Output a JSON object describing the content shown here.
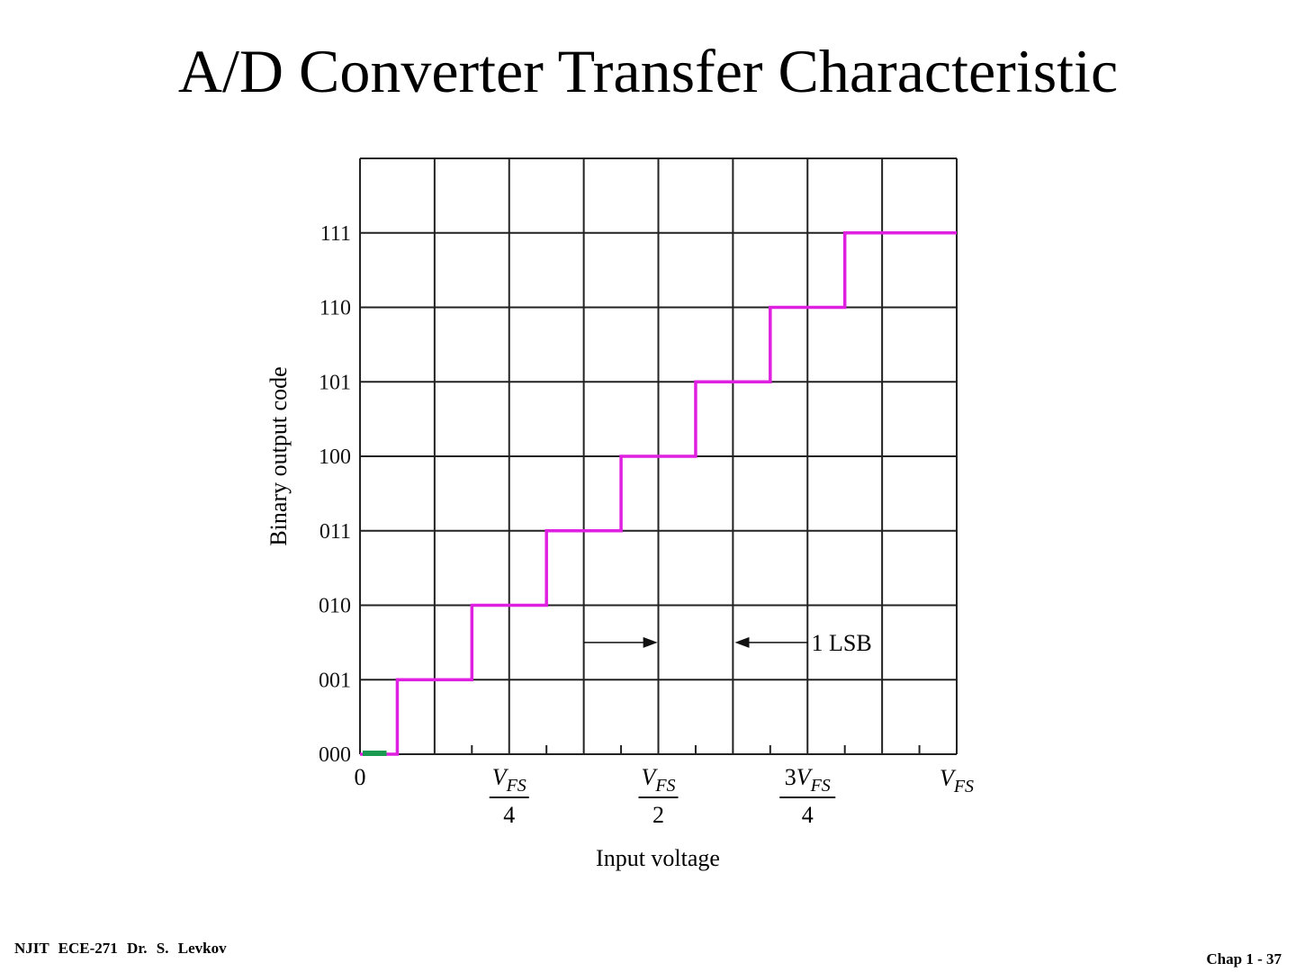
{
  "slide": {
    "title": "A/D Converter Transfer Characteristic",
    "footer_left": "NJIT   ECE-271   Dr. S. Levkov",
    "footer_right": "Chap 1 - 37"
  },
  "chart_data": {
    "type": "line",
    "title": "",
    "xlabel": "Input voltage",
    "ylabel": "Binary output code",
    "x_unit": "V_FS",
    "xlim": [
      0,
      1
    ],
    "ylim": [
      0,
      8
    ],
    "grid": true,
    "x_ticks": [
      {
        "value": 0,
        "label": "0"
      },
      {
        "value": 0.25,
        "coef": "",
        "den": "4"
      },
      {
        "value": 0.5,
        "coef": "",
        "den": "2"
      },
      {
        "value": 0.75,
        "coef": "3",
        "den": "4"
      },
      {
        "value": 1,
        "coef": "",
        "den": ""
      }
    ],
    "y_tick_labels": [
      "000",
      "001",
      "010",
      "011",
      "100",
      "101",
      "110",
      "111"
    ],
    "series": [
      {
        "style": "step",
        "color": "#e020e0",
        "transitions_x": [
          0.0625,
          0.1875,
          0.3125,
          0.4375,
          0.5625,
          0.6875,
          0.8125
        ],
        "codes": [
          0,
          1,
          2,
          3,
          4,
          5,
          6,
          7
        ],
        "x_end": 1
      }
    ],
    "annotation": {
      "label": "1 LSB",
      "from_x": 0.375,
      "to_x": 0.5,
      "y_code": 1.5
    },
    "highlight": {
      "color": "#1a9a50",
      "code": 0,
      "x_range": [
        0,
        0.04
      ]
    }
  }
}
